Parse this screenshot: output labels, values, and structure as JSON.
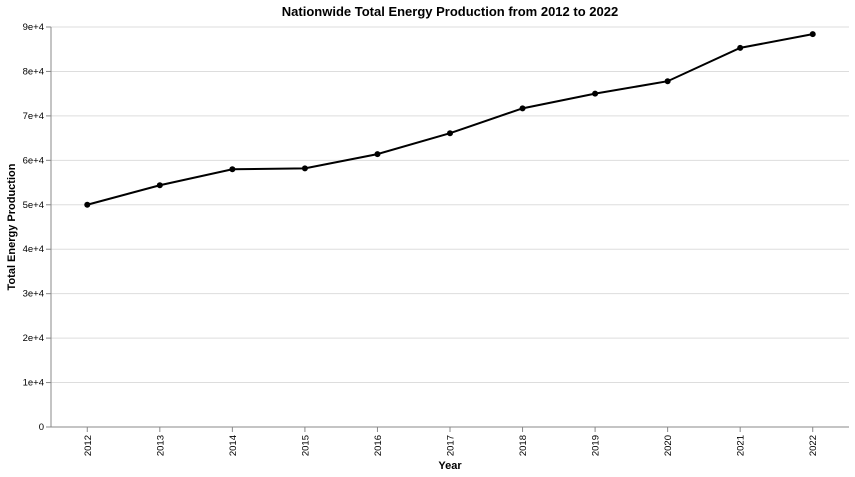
{
  "chart_data": {
    "type": "line",
    "title": "Nationwide Total Energy Production from 2012 to 2022",
    "xlabel": "Year",
    "ylabel": "Total Energy Production",
    "x": [
      "2012",
      "2013",
      "2014",
      "2015",
      "2016",
      "2017",
      "2018",
      "2019",
      "2020",
      "2021",
      "2022"
    ],
    "series": [
      {
        "values": [
          50000,
          54400,
          58000,
          58200,
          61400,
          66100,
          71700,
          75000,
          77800,
          85300,
          88400
        ]
      }
    ],
    "ylim": [
      0,
      90000
    ],
    "yticks": [
      0,
      10000,
      20000,
      30000,
      40000,
      50000,
      60000,
      70000,
      80000,
      90000
    ],
    "ytick_labels": [
      "0",
      "1e+4",
      "2e+4",
      "3e+4",
      "4e+4",
      "5e+4",
      "6e+4",
      "7e+4",
      "8e+4",
      "9e+4"
    ],
    "grid": true,
    "line_color": "#000000"
  }
}
